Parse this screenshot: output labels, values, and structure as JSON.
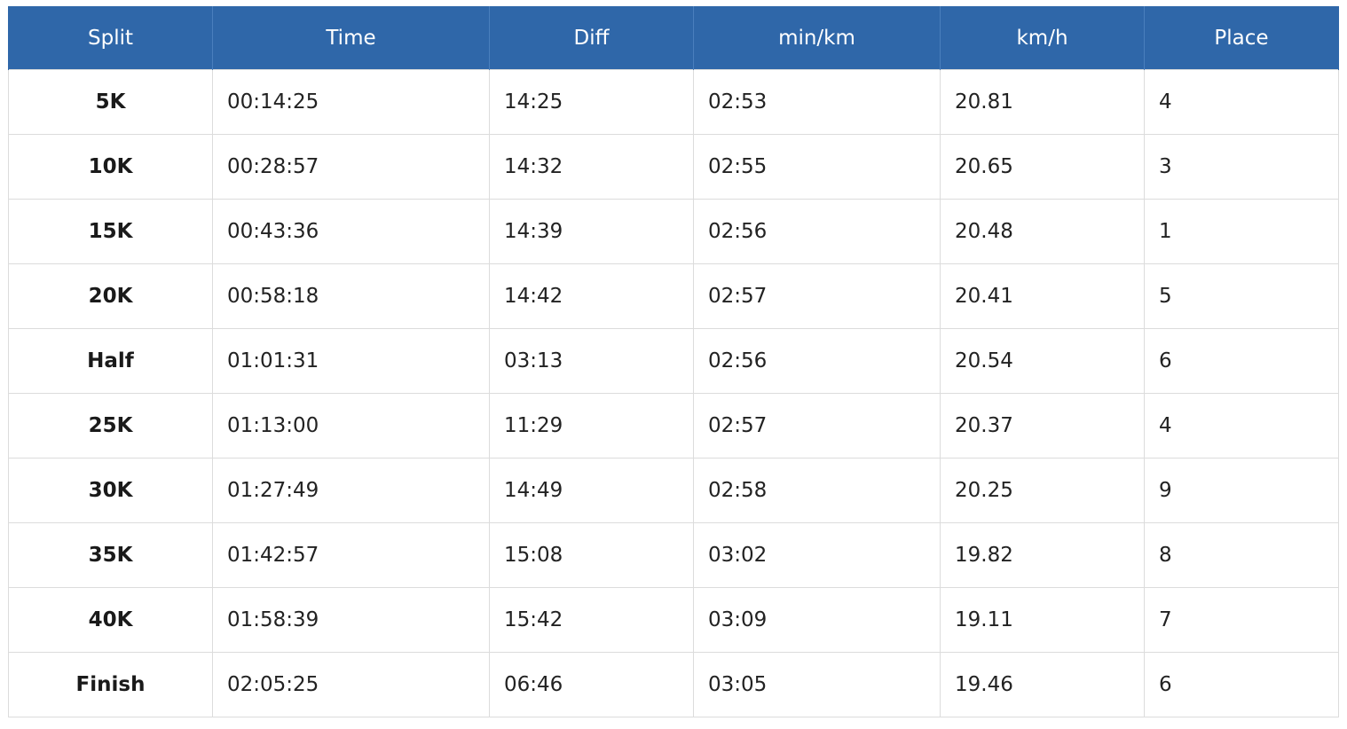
{
  "table": {
    "headers": [
      "Split",
      "Time",
      "Diff",
      "min/km",
      "km/h",
      "Place"
    ],
    "rows": [
      {
        "split": "5K",
        "time": "00:14:25",
        "diff": "14:25",
        "pace": "02:53",
        "speed": "20.81",
        "place": "4"
      },
      {
        "split": "10K",
        "time": "00:28:57",
        "diff": "14:32",
        "pace": "02:55",
        "speed": "20.65",
        "place": "3"
      },
      {
        "split": "15K",
        "time": "00:43:36",
        "diff": "14:39",
        "pace": "02:56",
        "speed": "20.48",
        "place": "1"
      },
      {
        "split": "20K",
        "time": "00:58:18",
        "diff": "14:42",
        "pace": "02:57",
        "speed": "20.41",
        "place": "5"
      },
      {
        "split": "Half",
        "time": "01:01:31",
        "diff": "03:13",
        "pace": "02:56",
        "speed": "20.54",
        "place": "6"
      },
      {
        "split": "25K",
        "time": "01:13:00",
        "diff": "11:29",
        "pace": "02:57",
        "speed": "20.37",
        "place": "4"
      },
      {
        "split": "30K",
        "time": "01:27:49",
        "diff": "14:49",
        "pace": "02:58",
        "speed": "20.25",
        "place": "9"
      },
      {
        "split": "35K",
        "time": "01:42:57",
        "diff": "15:08",
        "pace": "03:02",
        "speed": "19.82",
        "place": "8"
      },
      {
        "split": "40K",
        "time": "01:58:39",
        "diff": "15:42",
        "pace": "03:09",
        "speed": "19.11",
        "place": "7"
      },
      {
        "split": "Finish",
        "time": "02:05:25",
        "diff": "06:46",
        "pace": "03:05",
        "speed": "19.46",
        "place": "6"
      }
    ]
  },
  "colors": {
    "header_background": "#2f67a9",
    "header_text": "#ffffff",
    "grid_line": "#dcdcdc"
  }
}
